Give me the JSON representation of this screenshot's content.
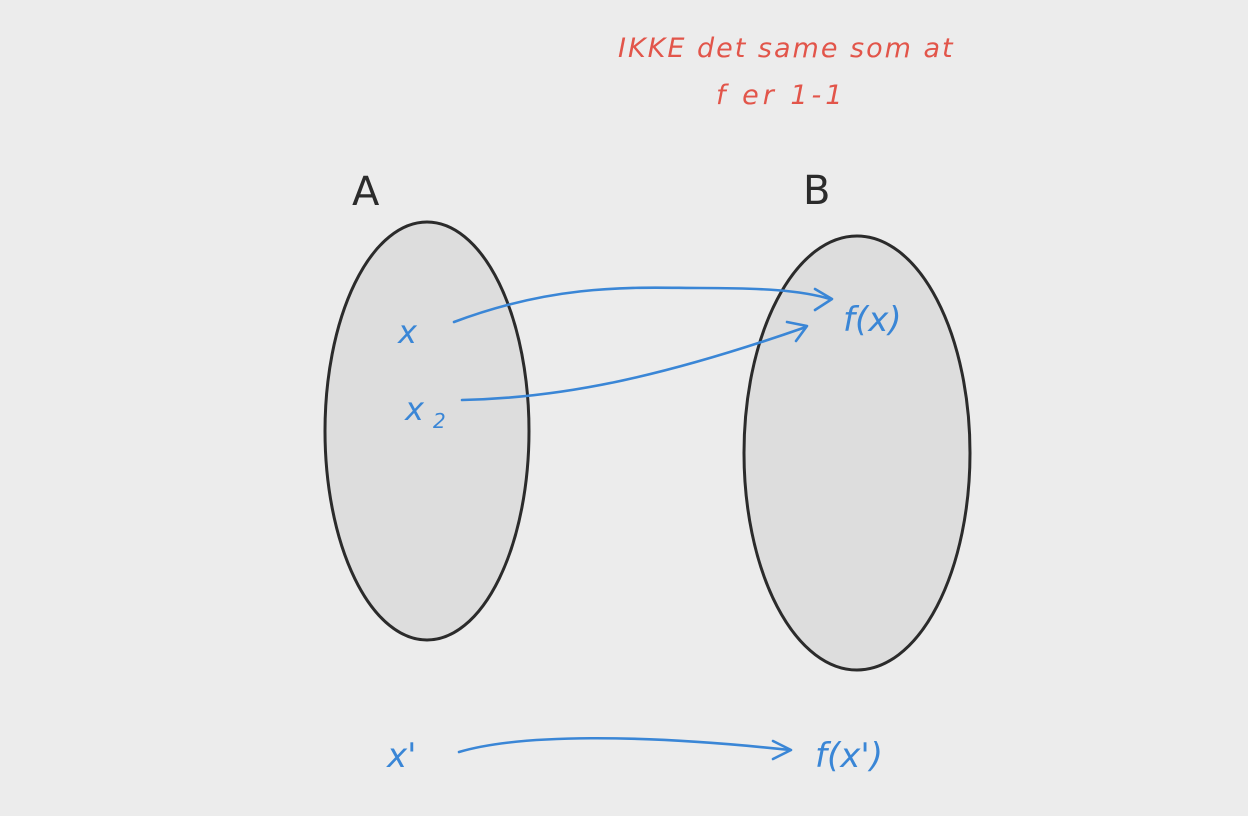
{
  "note": {
    "line1": "IKKE det same som at",
    "line2": "f er 1-1"
  },
  "set_a": {
    "label": "A",
    "elements": {
      "x": "x",
      "x2_base": "x",
      "x2_subscript": "2"
    }
  },
  "set_b": {
    "label": "B",
    "image": "f(x)"
  },
  "bottom_mapping": {
    "source": "x'",
    "target": "f(x')"
  },
  "colors": {
    "ink_blue": "#3a86d6",
    "ink_red": "#e2554a",
    "ink_black": "#2b2b2b",
    "set_fill": "#dddddd",
    "background": "#ececec"
  }
}
